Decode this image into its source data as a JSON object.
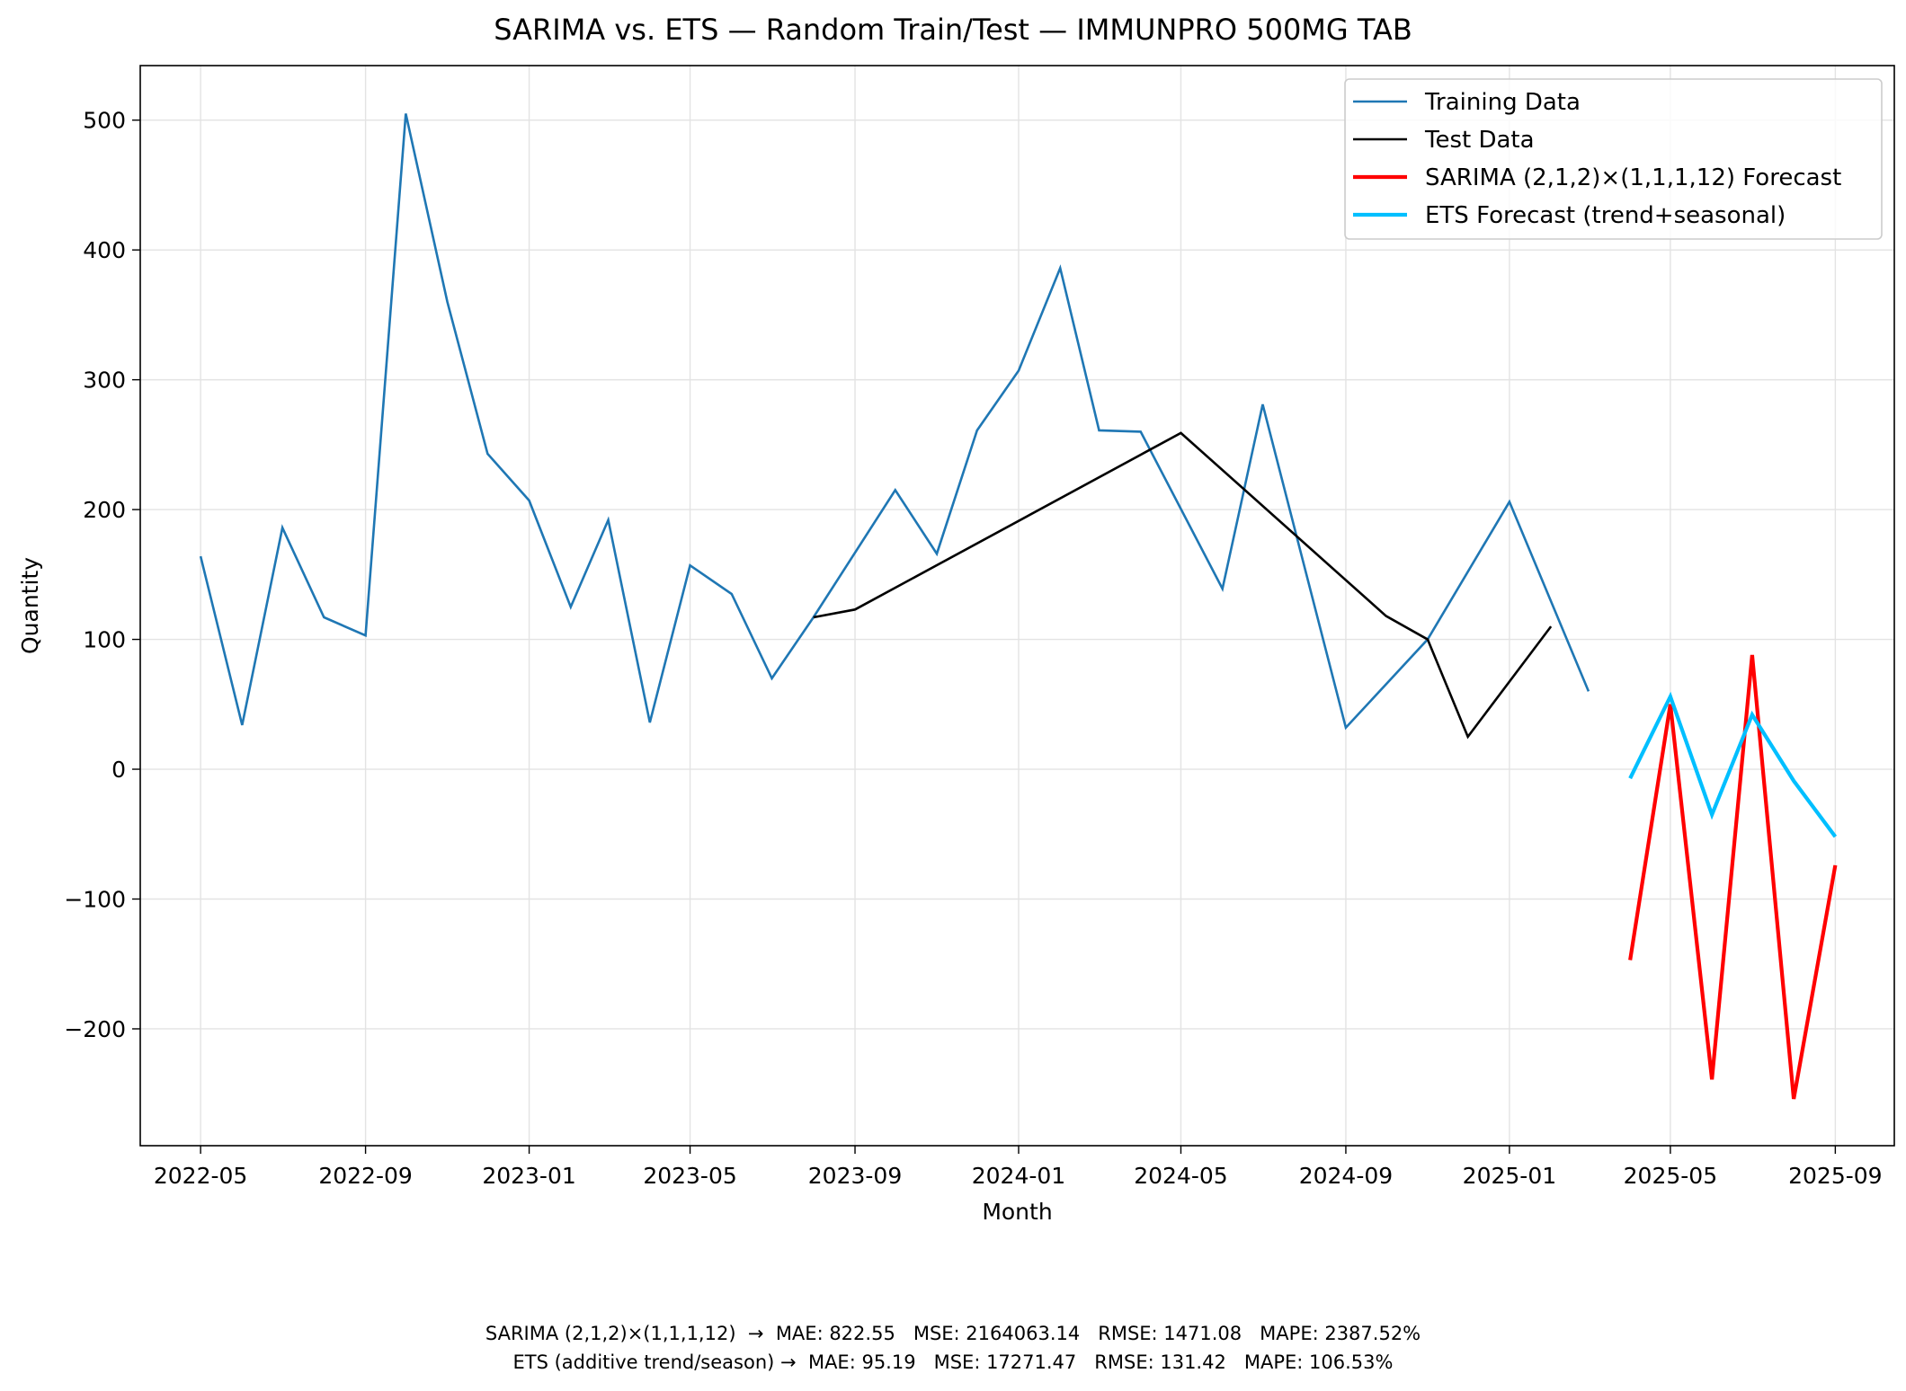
{
  "chart_data": {
    "type": "line",
    "title": "SARIMA vs. ETS — Random Train/Test — IMMUNPRO 500MG TAB",
    "xlabel": "Month",
    "ylabel": "Quantity",
    "xlim": [
      "2022-03-17",
      "2025-10-15"
    ],
    "ylim": [
      -290,
      542
    ],
    "x_ticks": [
      "2022-05",
      "2022-09",
      "2023-01",
      "2023-05",
      "2023-09",
      "2024-01",
      "2024-05",
      "2024-09",
      "2025-01",
      "2025-05",
      "2025-09"
    ],
    "y_ticks": [
      -200,
      -100,
      0,
      100,
      200,
      300,
      400,
      500
    ],
    "grid": true,
    "legend_position": "top-right",
    "series": [
      {
        "name": "Training Data",
        "color": "#1f77b4",
        "line_width": "thin",
        "points": [
          [
            "2022-05-01",
            164
          ],
          [
            "2022-06-01",
            34
          ],
          [
            "2022-07-01",
            186
          ],
          [
            "2022-08-01",
            117
          ],
          [
            "2022-09-01",
            103
          ],
          [
            "2022-10-01",
            505
          ],
          [
            "2022-11-01",
            360
          ],
          [
            "2022-12-01",
            243
          ],
          [
            "2023-01-01",
            207
          ],
          [
            "2023-02-01",
            125
          ],
          [
            "2023-03-01",
            192
          ],
          [
            "2023-04-01",
            36
          ],
          [
            "2023-05-01",
            157
          ],
          [
            "2023-06-01",
            135
          ],
          [
            "2023-07-01",
            70
          ],
          [
            "2023-08-01",
            117
          ],
          [
            "2023-10-01",
            215
          ],
          [
            "2023-11-01",
            166
          ],
          [
            "2023-12-01",
            261
          ],
          [
            "2024-01-01",
            307
          ],
          [
            "2024-02-01",
            386
          ],
          [
            "2024-03-01",
            261
          ],
          [
            "2024-04-01",
            260
          ],
          [
            "2024-06-01",
            139
          ],
          [
            "2024-07-01",
            281
          ],
          [
            "2024-09-01",
            32
          ],
          [
            "2024-11-01",
            100
          ],
          [
            "2025-01-01",
            206
          ],
          [
            "2025-03-01",
            60
          ]
        ]
      },
      {
        "name": "Test Data",
        "color": "#000000",
        "line_width": "thin",
        "points": [
          [
            "2023-08-01",
            117
          ],
          [
            "2023-09-01",
            123
          ],
          [
            "2024-05-01",
            259
          ],
          [
            "2024-10-01",
            118
          ],
          [
            "2024-11-01",
            100
          ],
          [
            "2024-12-01",
            25
          ],
          [
            "2025-02-01",
            110
          ]
        ]
      },
      {
        "name": "SARIMA (2,1,2)×(1,1,1,12) Forecast",
        "color": "#ff0000",
        "line_width": "thick",
        "points": [
          [
            "2025-04-01",
            -147
          ],
          [
            "2025-05-01",
            50
          ],
          [
            "2025-06-01",
            -239
          ],
          [
            "2025-07-01",
            88
          ],
          [
            "2025-08-01",
            -254
          ],
          [
            "2025-09-01",
            -74
          ]
        ]
      },
      {
        "name": "ETS Forecast (trend+seasonal)",
        "color": "#00bfff",
        "line_width": "thick",
        "points": [
          [
            "2025-04-01",
            -7
          ],
          [
            "2025-05-01",
            56
          ],
          [
            "2025-06-01",
            -35
          ],
          [
            "2025-07-01",
            42
          ],
          [
            "2025-08-01",
            -9
          ],
          [
            "2025-09-01",
            -52
          ]
        ]
      }
    ]
  },
  "footer": {
    "line1": "SARIMA (2,1,2)×(1,1,1,12)  →  MAE: 822.55   MSE: 2164063.14   RMSE: 1471.08   MAPE: 2387.52%",
    "line2": "ETS (additive trend/season) →  MAE: 95.19   MSE: 17271.47   RMSE: 131.42   MAPE: 106.53%"
  }
}
